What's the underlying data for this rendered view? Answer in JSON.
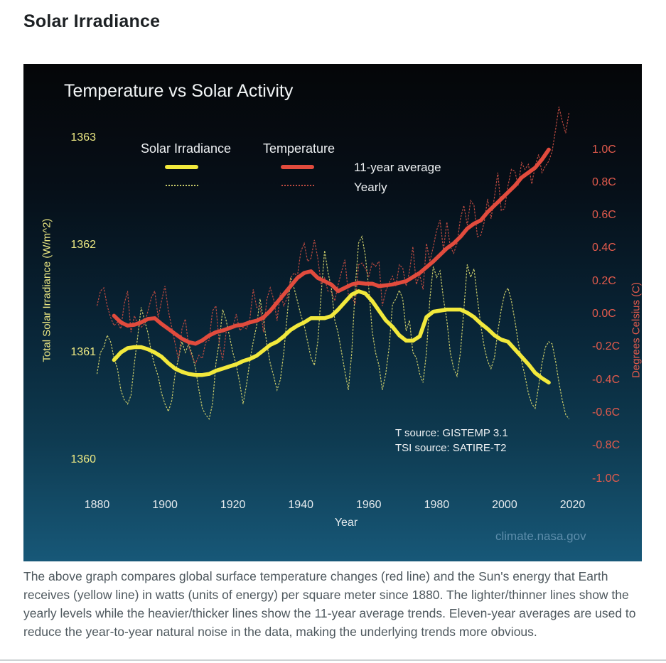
{
  "page": {
    "title": "Solar Irradiance",
    "caption": "The above graph compares global surface temperature changes (red line) and the Sun's energy that Earth receives (yellow line) in watts (units of energy) per square meter since 1880. The lighter/thinner lines show the yearly levels while the heavier/thicker lines show the 11-year average trends. Eleven-year averages are used to reduce the year-to-year natural noise in the data, making the underlying trends more obvious."
  },
  "chart": {
    "title": "Temperature vs Solar Activity",
    "legend": {
      "series1": "Solar Irradiance",
      "series2": "Temperature",
      "row1": "11-year average",
      "row2": "Yearly"
    },
    "source_line1": "T source: GISTEMP 3.1",
    "source_line2": "TSI source: SATIRE-T2",
    "watermark": "climate.nasa.gov",
    "colors": {
      "tsi_thick": "#f2e93c",
      "tsi_thin": "#c9cb6a",
      "temp_thick": "#e14b3d",
      "temp_thin": "#bb4a40",
      "left_axis_text": "#ece883",
      "right_axis_text": "#e15a4c",
      "white_text": "#eef1f3",
      "link": "#5d8dab",
      "panel_top": "#050608",
      "panel_bottom": "#175878"
    }
  },
  "chart_data": {
    "type": "line",
    "title": "Temperature vs Solar Activity",
    "xlabel": "Year",
    "ylabel_left": "Total Solar Irradiance (W/m^2)",
    "ylabel_right": "Degrees Celsius (C)",
    "xlim": [
      1873,
      2027
    ],
    "ylim_left": [
      1359.63,
      1363.66
    ],
    "ylim_right": [
      -1.52,
      1.52
    ],
    "grid": false,
    "legend_position": "top-left",
    "x_ticks": [
      1880,
      1900,
      1920,
      1940,
      1960,
      1980,
      2000,
      2020
    ],
    "y_left_ticks": [
      {
        "label": "1363",
        "value": 1363
      },
      {
        "label": "1362",
        "value": 1362
      },
      {
        "label": "1361",
        "value": 1361
      },
      {
        "label": "1360",
        "value": 1360
      }
    ],
    "y_right_ticks": [
      {
        "label": "1.0C",
        "value": 1.0
      },
      {
        "label": "0.8C",
        "value": 0.8
      },
      {
        "label": "0.6C",
        "value": 0.6
      },
      {
        "label": "0.4C",
        "value": 0.4
      },
      {
        "label": "0.2C",
        "value": 0.2
      },
      {
        "label": "0.0C",
        "value": 0.0
      },
      {
        "label": "-0.2C",
        "value": -0.2
      },
      {
        "label": "-0.4C",
        "value": -0.4
      },
      {
        "label": "-0.6C",
        "value": -0.6
      },
      {
        "label": "-0.8C",
        "value": -0.8
      },
      {
        "label": "-1.0C",
        "value": -1.0
      }
    ],
    "series": [
      {
        "name": "Solar Irradiance yearly",
        "axis": "left",
        "style": "thin-dotted",
        "color": "#c9cb6a",
        "start_year": 1880,
        "values": [
          1360.8,
          1361.0,
          1361.05,
          1361.16,
          1361.1,
          1360.95,
          1360.85,
          1360.65,
          1360.56,
          1360.52,
          1360.6,
          1360.9,
          1361.15,
          1361.42,
          1361.3,
          1361.18,
          1361.0,
          1360.88,
          1360.78,
          1360.62,
          1360.52,
          1360.45,
          1360.55,
          1360.8,
          1360.95,
          1361.1,
          1361.0,
          1361.08,
          1360.98,
          1360.85,
          1360.65,
          1360.48,
          1360.42,
          1360.38,
          1360.52,
          1360.9,
          1361.1,
          1361.4,
          1361.3,
          1361.15,
          1361.0,
          1360.88,
          1360.72,
          1360.52,
          1360.7,
          1360.92,
          1361.1,
          1361.25,
          1361.5,
          1361.3,
          1361.08,
          1360.9,
          1360.78,
          1360.65,
          1360.75,
          1361.0,
          1361.35,
          1361.7,
          1361.6,
          1361.48,
          1361.35,
          1361.25,
          1361.1,
          1360.95,
          1360.88,
          1361.1,
          1361.55,
          1361.95,
          1361.75,
          1361.6,
          1361.3,
          1361.18,
          1361.0,
          1360.82,
          1360.65,
          1361.0,
          1361.6,
          1362.02,
          1362.08,
          1361.9,
          1361.6,
          1361.2,
          1361.0,
          1360.88,
          1360.65,
          1360.8,
          1361.05,
          1361.45,
          1361.5,
          1361.58,
          1361.5,
          1361.2,
          1361.3,
          1361.0,
          1360.95,
          1360.8,
          1360.72,
          1361.0,
          1361.5,
          1361.8,
          1361.7,
          1361.76,
          1361.5,
          1361.3,
          1361.0,
          1360.85,
          1360.78,
          1361.0,
          1361.4,
          1361.82,
          1361.7,
          1361.78,
          1361.5,
          1361.25,
          1361.05,
          1360.92,
          1360.85,
          1360.95,
          1361.2,
          1361.4,
          1361.55,
          1361.6,
          1361.48,
          1361.3,
          1361.1,
          1360.92,
          1360.78,
          1360.62,
          1360.52,
          1360.48,
          1360.68,
          1360.9,
          1361.05,
          1361.1,
          1361.08,
          1360.92,
          1360.72,
          1360.55,
          1360.42,
          1360.38
        ]
      },
      {
        "name": "Temperature yearly",
        "axis": "right",
        "style": "thin-dotted",
        "color": "#bb4a40",
        "start_year": 1880,
        "values": [
          0.05,
          0.14,
          0.16,
          0.05,
          -0.02,
          -0.07,
          -0.05,
          -0.09,
          0.06,
          0.14,
          -0.11,
          -0.01,
          -0.06,
          -0.08,
          -0.06,
          0.02,
          0.1,
          0.14,
          -0.02,
          0.08,
          0.17,
          0.02,
          -0.08,
          -0.18,
          -0.28,
          -0.09,
          -0.03,
          -0.2,
          -0.26,
          -0.3,
          -0.25,
          -0.27,
          -0.17,
          -0.16,
          0.02,
          0.05,
          -0.18,
          -0.28,
          -0.11,
          -0.09,
          -0.08,
          0.0,
          -0.1,
          -0.08,
          -0.09,
          -0.03,
          0.15,
          0.04,
          0.05,
          -0.11,
          0.09,
          0.16,
          0.09,
          -0.04,
          0.13,
          0.05,
          0.1,
          0.22,
          0.25,
          0.23,
          0.38,
          0.43,
          0.32,
          0.34,
          0.45,
          0.34,
          0.18,
          0.22,
          0.14,
          0.14,
          0.08,
          0.18,
          0.26,
          0.33,
          0.12,
          0.11,
          0.06,
          0.3,
          0.31,
          0.28,
          0.23,
          0.31,
          0.29,
          0.32,
          0.05,
          0.14,
          0.19,
          0.23,
          0.17,
          0.3,
          0.28,
          0.17,
          0.26,
          0.41,
          0.18,
          0.24,
          0.15,
          0.43,
          0.32,
          0.41,
          0.51,
          0.57,
          0.39,
          0.56,
          0.41,
          0.37,
          0.43,
          0.58,
          0.66,
          0.54,
          0.69,
          0.66,
          0.47,
          0.48,
          0.56,
          0.7,
          0.58,
          0.71,
          0.86,
          0.63,
          0.64,
          0.78,
          0.88,
          0.87,
          0.78,
          0.92,
          0.88,
          0.91,
          0.79,
          0.9,
          0.97,
          0.86,
          0.9,
          0.93,
          0.99,
          1.12,
          1.26,
          1.17,
          1.1,
          1.23
        ]
      },
      {
        "name": "Solar Irradiance 11-year average",
        "axis": "left",
        "style": "thick-solid",
        "color": "#f2e93c",
        "points": [
          [
            1885,
            1360.93
          ],
          [
            1887,
            1361.0
          ],
          [
            1889,
            1361.04
          ],
          [
            1891,
            1361.05
          ],
          [
            1893,
            1361.05
          ],
          [
            1895,
            1361.03
          ],
          [
            1897,
            1361.0
          ],
          [
            1899,
            1360.96
          ],
          [
            1901,
            1360.9
          ],
          [
            1903,
            1360.85
          ],
          [
            1905,
            1360.82
          ],
          [
            1907,
            1360.8
          ],
          [
            1909,
            1360.79
          ],
          [
            1911,
            1360.79
          ],
          [
            1913,
            1360.8
          ],
          [
            1915,
            1360.83
          ],
          [
            1917,
            1360.85
          ],
          [
            1919,
            1360.87
          ],
          [
            1921,
            1360.89
          ],
          [
            1923,
            1360.92
          ],
          [
            1925,
            1360.94
          ],
          [
            1927,
            1360.97
          ],
          [
            1929,
            1361.02
          ],
          [
            1931,
            1361.07
          ],
          [
            1933,
            1361.1
          ],
          [
            1935,
            1361.15
          ],
          [
            1937,
            1361.21
          ],
          [
            1939,
            1361.25
          ],
          [
            1941,
            1361.28
          ],
          [
            1943,
            1361.32
          ],
          [
            1945,
            1361.32
          ],
          [
            1947,
            1361.32
          ],
          [
            1949,
            1361.34
          ],
          [
            1951,
            1361.4
          ],
          [
            1953,
            1361.47
          ],
          [
            1955,
            1361.54
          ],
          [
            1957,
            1361.57
          ],
          [
            1959,
            1361.55
          ],
          [
            1961,
            1361.48
          ],
          [
            1963,
            1361.39
          ],
          [
            1965,
            1361.3
          ],
          [
            1967,
            1361.24
          ],
          [
            1969,
            1361.16
          ],
          [
            1971,
            1361.11
          ],
          [
            1973,
            1361.11
          ],
          [
            1975,
            1361.15
          ],
          [
            1977,
            1361.33
          ],
          [
            1979,
            1361.38
          ],
          [
            1981,
            1361.39
          ],
          [
            1983,
            1361.4
          ],
          [
            1985,
            1361.4
          ],
          [
            1987,
            1361.4
          ],
          [
            1989,
            1361.37
          ],
          [
            1991,
            1361.33
          ],
          [
            1993,
            1361.27
          ],
          [
            1995,
            1361.22
          ],
          [
            1997,
            1361.16
          ],
          [
            1999,
            1361.12
          ],
          [
            2001,
            1361.1
          ],
          [
            2003,
            1361.03
          ],
          [
            2005,
            1360.96
          ],
          [
            2007,
            1360.89
          ],
          [
            2009,
            1360.81
          ],
          [
            2011,
            1360.76
          ],
          [
            2013,
            1360.72
          ]
        ]
      },
      {
        "name": "Temperature 11-year average",
        "axis": "right",
        "style": "thick-solid",
        "color": "#e14b3d",
        "points": [
          [
            1885,
            -0.01
          ],
          [
            1887,
            -0.05
          ],
          [
            1889,
            -0.07
          ],
          [
            1891,
            -0.065
          ],
          [
            1893,
            -0.05
          ],
          [
            1895,
            -0.03
          ],
          [
            1897,
            -0.025
          ],
          [
            1899,
            -0.06
          ],
          [
            1901,
            -0.09
          ],
          [
            1903,
            -0.12
          ],
          [
            1905,
            -0.15
          ],
          [
            1907,
            -0.17
          ],
          [
            1909,
            -0.18
          ],
          [
            1911,
            -0.16
          ],
          [
            1913,
            -0.13
          ],
          [
            1915,
            -0.11
          ],
          [
            1917,
            -0.1
          ],
          [
            1919,
            -0.085
          ],
          [
            1921,
            -0.07
          ],
          [
            1923,
            -0.065
          ],
          [
            1925,
            -0.05
          ],
          [
            1927,
            -0.04
          ],
          [
            1929,
            -0.02
          ],
          [
            1931,
            0.02
          ],
          [
            1933,
            0.07
          ],
          [
            1935,
            0.12
          ],
          [
            1937,
            0.17
          ],
          [
            1939,
            0.22
          ],
          [
            1941,
            0.25
          ],
          [
            1943,
            0.26
          ],
          [
            1945,
            0.22
          ],
          [
            1947,
            0.2
          ],
          [
            1949,
            0.18
          ],
          [
            1951,
            0.14
          ],
          [
            1953,
            0.16
          ],
          [
            1955,
            0.18
          ],
          [
            1957,
            0.19
          ],
          [
            1959,
            0.185
          ],
          [
            1961,
            0.185
          ],
          [
            1963,
            0.17
          ],
          [
            1965,
            0.175
          ],
          [
            1967,
            0.18
          ],
          [
            1969,
            0.19
          ],
          [
            1971,
            0.2
          ],
          [
            1973,
            0.225
          ],
          [
            1975,
            0.25
          ],
          [
            1977,
            0.285
          ],
          [
            1979,
            0.32
          ],
          [
            1981,
            0.36
          ],
          [
            1983,
            0.4
          ],
          [
            1985,
            0.43
          ],
          [
            1987,
            0.47
          ],
          [
            1989,
            0.52
          ],
          [
            1991,
            0.55
          ],
          [
            1993,
            0.57
          ],
          [
            1995,
            0.62
          ],
          [
            1997,
            0.66
          ],
          [
            1999,
            0.7
          ],
          [
            2001,
            0.74
          ],
          [
            2003,
            0.78
          ],
          [
            2005,
            0.83
          ],
          [
            2007,
            0.86
          ],
          [
            2009,
            0.89
          ],
          [
            2011,
            0.94
          ],
          [
            2013,
            1.0
          ]
        ]
      }
    ]
  }
}
